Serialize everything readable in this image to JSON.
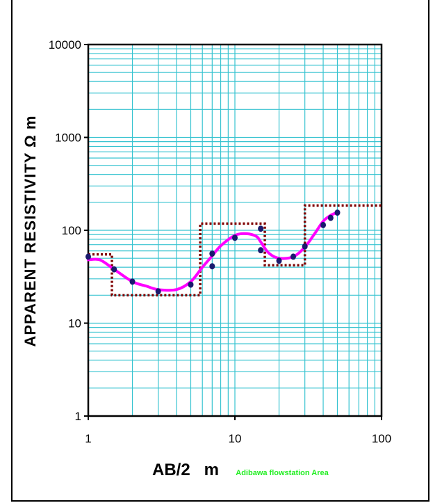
{
  "chart_data": {
    "type": "scatter",
    "title": "",
    "xlabel": "AB/2   m",
    "ylabel": "APPARENT RESISTIVITY  Ω m",
    "subtitle": "Adibawa flowstation Area",
    "x_scale": "log",
    "y_scale": "log",
    "xlim": [
      1,
      100
    ],
    "ylim": [
      1,
      10000
    ],
    "x_tick_labels": [
      "1",
      "10",
      "100"
    ],
    "y_tick_labels": [
      "1",
      "10",
      "100",
      "1000",
      "10000"
    ],
    "grid": true,
    "legend": "none",
    "series": [
      {
        "kind": "points",
        "x": [
          1,
          1.5,
          2,
          3,
          5,
          7,
          7,
          10,
          15,
          15,
          20,
          25,
          30,
          40,
          45,
          50
        ],
        "y": [
          52,
          38,
          28,
          22,
          26,
          56,
          41,
          83,
          104,
          61,
          47,
          52,
          67,
          114,
          136,
          155
        ]
      },
      {
        "kind": "fitted-curve",
        "x": [
          1,
          1.2,
          1.5,
          2,
          2.5,
          3,
          4,
          5,
          6,
          7,
          8,
          10,
          12,
          14,
          15,
          17,
          20,
          25,
          30,
          35,
          40,
          45,
          50
        ],
        "y": [
          48,
          48,
          38,
          28,
          25,
          23,
          23,
          28,
          40,
          53,
          68,
          88,
          92,
          86,
          75,
          57,
          50,
          52,
          66,
          92,
          125,
          145,
          155
        ]
      },
      {
        "kind": "layer-model",
        "x": [
          1,
          1.45,
          1.45,
          5.8,
          5.8,
          16,
          16,
          30,
          30,
          100
        ],
        "y": [
          55,
          55,
          20,
          20,
          118,
          118,
          42,
          42,
          185,
          185
        ]
      }
    ],
    "colors": {
      "grid": "#36c3d0",
      "points": "#1a1a6e",
      "curve": "#ff00ff",
      "model": "#800000",
      "subtitle": "#22ee22"
    }
  }
}
